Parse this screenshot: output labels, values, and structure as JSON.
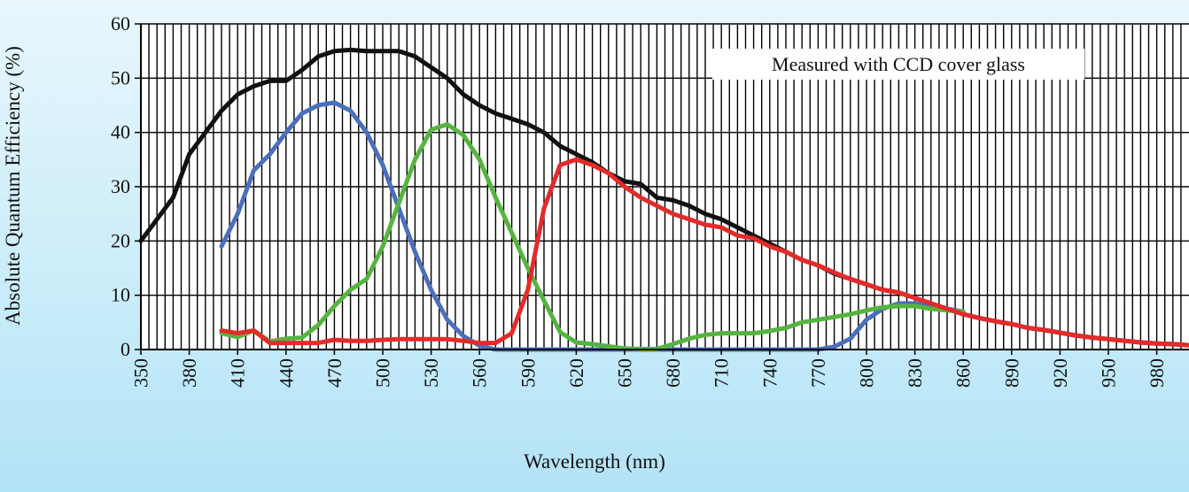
{
  "chart_data": {
    "type": "line",
    "title": "",
    "xlabel": "Wavelength (nm)",
    "ylabel": "Absolute Quantum Efficiency (%)",
    "xlim": [
      350,
      1000
    ],
    "ylim": [
      0,
      60
    ],
    "y_ticks": [
      0,
      10,
      20,
      30,
      40,
      50,
      60
    ],
    "x_ticks": [
      350,
      380,
      410,
      440,
      470,
      500,
      530,
      560,
      590,
      620,
      650,
      680,
      710,
      740,
      770,
      800,
      830,
      860,
      890,
      920,
      950,
      980
    ],
    "grid": true,
    "annotation": "Measured with CCD cover glass",
    "series": [
      {
        "color": "#111111",
        "x": [
          350,
          360,
          370,
          380,
          390,
          400,
          410,
          420,
          430,
          440,
          450,
          460,
          470,
          480,
          490,
          500,
          510,
          520,
          530,
          540,
          550,
          560,
          570,
          580,
          590,
          600,
          610,
          620,
          630,
          640,
          650,
          660,
          670,
          680,
          690,
          700,
          710,
          720,
          730,
          740,
          750,
          760,
          770,
          780,
          790,
          800,
          810,
          820,
          830,
          840,
          850,
          860,
          870,
          880,
          890,
          900,
          910,
          920,
          930,
          940,
          950,
          960,
          970,
          980,
          990,
          1000
        ],
        "y": [
          20,
          24,
          28,
          36,
          40,
          44,
          47,
          48.5,
          49.5,
          49.5,
          51.5,
          54,
          55,
          55.2,
          55,
          55,
          55,
          54,
          52,
          50,
          47,
          45,
          43.5,
          42.5,
          41.5,
          40,
          37.5,
          36,
          34.5,
          32.5,
          31,
          30.5,
          28,
          27.5,
          26.5,
          25,
          24,
          22.5,
          21,
          19.5,
          18,
          16.5,
          15.5,
          14,
          13,
          12,
          11,
          10.5,
          9.5,
          8.5,
          7.5,
          6.5,
          5.8,
          5.2,
          4.7,
          4,
          3.6,
          3.1,
          2.6,
          2.2,
          1.9,
          1.6,
          1.3,
          1.1,
          1,
          0.8
        ]
      },
      {
        "color": "#4a6fbb",
        "x": [
          400,
          410,
          420,
          430,
          440,
          450,
          460,
          470,
          480,
          490,
          500,
          510,
          520,
          530,
          540,
          550,
          560,
          570,
          580,
          590,
          600,
          610,
          620,
          630,
          640,
          650,
          660,
          670,
          680,
          690,
          700,
          710,
          720,
          730,
          740,
          750,
          760,
          770,
          780,
          790,
          800,
          810,
          820,
          830,
          840,
          850,
          860
        ],
        "y": [
          19,
          25,
          33,
          36,
          40,
          43.5,
          45,
          45.5,
          44,
          40,
          34,
          26,
          18,
          11,
          5.5,
          2.5,
          0.7,
          0,
          0,
          0,
          0,
          0,
          0,
          0,
          0,
          0,
          0,
          0,
          0,
          0,
          0,
          0,
          0,
          0,
          0,
          0,
          0,
          0,
          0.5,
          2,
          5.5,
          7.5,
          8.5,
          8.5,
          8,
          7.5,
          7
        ]
      },
      {
        "color": "#55b440",
        "x": [
          400,
          410,
          420,
          430,
          440,
          450,
          460,
          470,
          480,
          490,
          500,
          510,
          520,
          530,
          540,
          550,
          560,
          570,
          580,
          590,
          600,
          610,
          620,
          630,
          640,
          650,
          660,
          670,
          680,
          690,
          700,
          710,
          720,
          730,
          740,
          750,
          760,
          770,
          780,
          790,
          800,
          810,
          820,
          830,
          840,
          850,
          860
        ],
        "y": [
          3,
          2.3,
          3.5,
          1.5,
          2,
          2.2,
          4.5,
          8,
          11,
          13,
          19,
          27,
          35,
          40.5,
          41.5,
          39.5,
          35,
          28,
          21.5,
          15,
          9,
          3.2,
          1.3,
          1,
          0.6,
          0.2,
          0.1,
          0.1,
          1,
          2,
          2.7,
          3,
          3,
          3,
          3.4,
          4,
          5,
          5.5,
          6,
          6.5,
          7.2,
          7.8,
          8,
          8,
          7.5,
          7.2,
          7
        ]
      },
      {
        "color": "#e52a2a",
        "x": [
          400,
          410,
          420,
          430,
          440,
          450,
          460,
          470,
          480,
          490,
          500,
          510,
          520,
          530,
          540,
          550,
          560,
          570,
          580,
          590,
          600,
          610,
          620,
          630,
          640,
          650,
          660,
          670,
          680,
          690,
          700,
          710,
          720,
          730,
          740,
          750,
          760,
          770,
          780,
          790,
          800,
          810,
          820,
          830,
          840,
          850,
          860,
          870,
          880,
          890,
          900,
          910,
          920,
          930,
          940,
          950,
          960,
          970,
          980,
          990,
          1000
        ],
        "y": [
          3.5,
          3,
          3.5,
          1.2,
          1.2,
          1.2,
          1.2,
          1.8,
          1.6,
          1.6,
          1.8,
          1.9,
          1.9,
          1.9,
          1.9,
          1.6,
          1.2,
          1.2,
          3,
          11,
          26,
          34,
          35,
          34,
          32.5,
          30,
          28,
          26.5,
          25,
          24,
          23,
          22.5,
          21,
          20.5,
          19,
          18,
          16.5,
          15.5,
          14.2,
          13,
          12,
          11,
          10.5,
          9.5,
          8.5,
          7.5,
          6.5,
          5.8,
          5.2,
          4.7,
          4,
          3.6,
          3.1,
          2.6,
          2.2,
          1.9,
          1.6,
          1.3,
          1.1,
          1,
          0.8
        ]
      }
    ]
  }
}
